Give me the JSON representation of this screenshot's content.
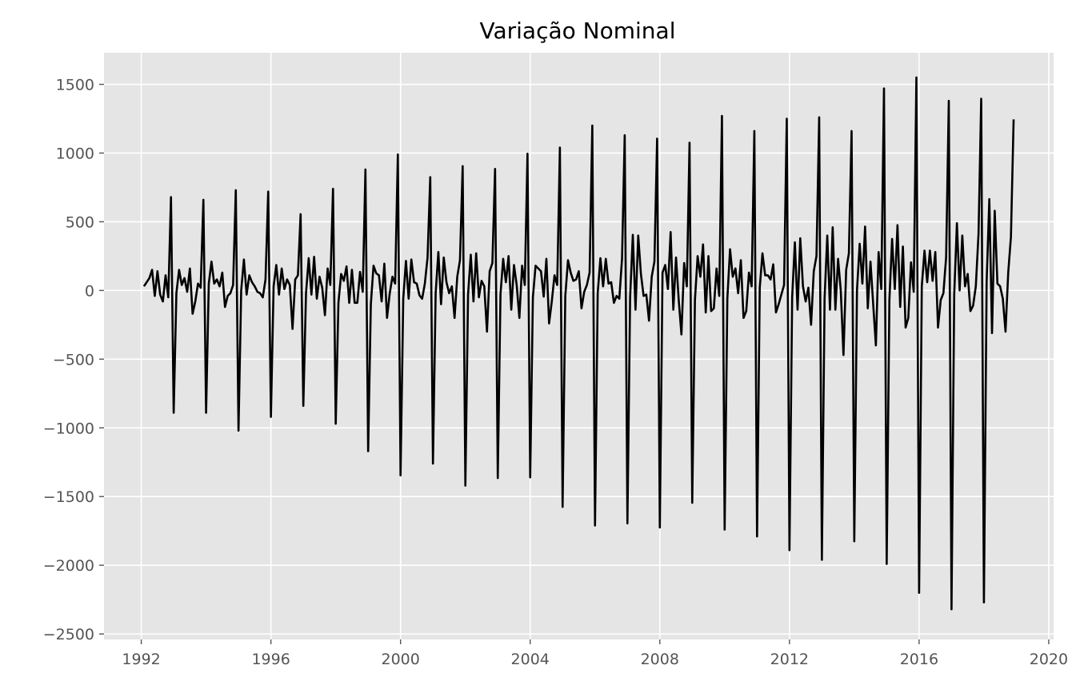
{
  "chart_data": {
    "type": "line",
    "title": "Variação Nominal",
    "xlabel": "",
    "ylabel": "",
    "xlim": [
      1990.85,
      2020.15
    ],
    "ylim": [
      -2540,
      1730
    ],
    "x_ticks": [
      1992,
      1996,
      2000,
      2004,
      2008,
      2012,
      2016,
      2020
    ],
    "x_tick_labels": [
      "1992",
      "1996",
      "2000",
      "2004",
      "2008",
      "2012",
      "2016",
      "2020"
    ],
    "y_ticks": [
      1500,
      1000,
      500,
      0,
      -500,
      -1000,
      -1500,
      -2000,
      -2500
    ],
    "y_tick_labels": [
      "1500",
      "1000",
      "500",
      "0",
      "−500",
      "−1000",
      "−1500",
      "−2000",
      "−2500"
    ],
    "grid": true,
    "background": "#e5e5e5",
    "line_color": "#000000",
    "series": [
      {
        "start": "1992-02",
        "frequency": "monthly",
        "values": [
          30,
          60,
          90,
          150,
          -40,
          140,
          -30,
          -80,
          110,
          -50,
          680,
          -890,
          -20,
          150,
          40,
          90,
          -10,
          160,
          -170,
          -80,
          50,
          20,
          660,
          -890,
          50,
          210,
          50,
          80,
          30,
          130,
          -120,
          -40,
          -20,
          40,
          730,
          -1020,
          0,
          225,
          -30,
          110,
          60,
          30,
          -10,
          -20,
          -50,
          80,
          720,
          -920,
          30,
          185,
          -30,
          160,
          10,
          80,
          40,
          -280,
          80,
          110,
          555,
          -840,
          -20,
          235,
          -30,
          245,
          -60,
          100,
          20,
          -180,
          160,
          40,
          740,
          -970,
          -90,
          120,
          70,
          175,
          -90,
          150,
          -90,
          -90,
          135,
          -10,
          880,
          -1170,
          -100,
          180,
          125,
          110,
          -80,
          195,
          -200,
          -20,
          100,
          50,
          990,
          -1345,
          -60,
          215,
          -60,
          225,
          60,
          50,
          -35,
          -60,
          50,
          240,
          825,
          -1260,
          -20,
          280,
          -100,
          240,
          60,
          -20,
          30,
          -200,
          100,
          220,
          905,
          -1420,
          -30,
          260,
          -80,
          270,
          -50,
          70,
          30,
          -300,
          140,
          200,
          885,
          -1365,
          -30,
          230,
          60,
          250,
          -140,
          185,
          40,
          -200,
          180,
          40,
          995,
          -1360,
          -50,
          180,
          160,
          140,
          -45,
          230,
          -240,
          -80,
          110,
          40,
          1040,
          -1575,
          -40,
          220,
          130,
          70,
          80,
          140,
          -130,
          -10,
          40,
          130,
          1200,
          -1710,
          -20,
          235,
          30,
          230,
          50,
          60,
          -90,
          -40,
          -60,
          230,
          1130,
          -1695,
          -50,
          405,
          -140,
          400,
          120,
          -40,
          -30,
          -220,
          100,
          210,
          1105,
          -1725,
          130,
          185,
          10,
          425,
          -140,
          240,
          -70,
          -320,
          200,
          30,
          1075,
          -1545,
          -70,
          250,
          100,
          335,
          -160,
          250,
          -150,
          -130,
          160,
          -40,
          1270,
          -1740,
          -60,
          300,
          100,
          160,
          -20,
          220,
          -200,
          -150,
          130,
          30,
          1160,
          -1790,
          20,
          270,
          110,
          110,
          80,
          190,
          -160,
          -100,
          -30,
          40,
          1250,
          -1890,
          -50,
          350,
          -140,
          380,
          30,
          -80,
          20,
          -250,
          140,
          250,
          1260,
          -1960,
          -60,
          400,
          -140,
          460,
          -140,
          230,
          0,
          -470,
          150,
          270,
          1160,
          -1825,
          0,
          340,
          50,
          465,
          -130,
          210,
          -100,
          -400,
          280,
          10,
          1470,
          -1990,
          -70,
          375,
          10,
          475,
          -120,
          320,
          -270,
          -200,
          205,
          -10,
          1550,
          -2200,
          30,
          290,
          60,
          290,
          70,
          280,
          -270,
          -70,
          -20,
          240,
          1380,
          -2320,
          -30,
          490,
          0,
          400,
          30,
          120,
          -150,
          -110,
          30,
          410,
          1395,
          -2270,
          60,
          665,
          -310,
          580,
          50,
          30,
          -60,
          -300,
          130,
          390,
          1245
        ]
      }
    ]
  }
}
